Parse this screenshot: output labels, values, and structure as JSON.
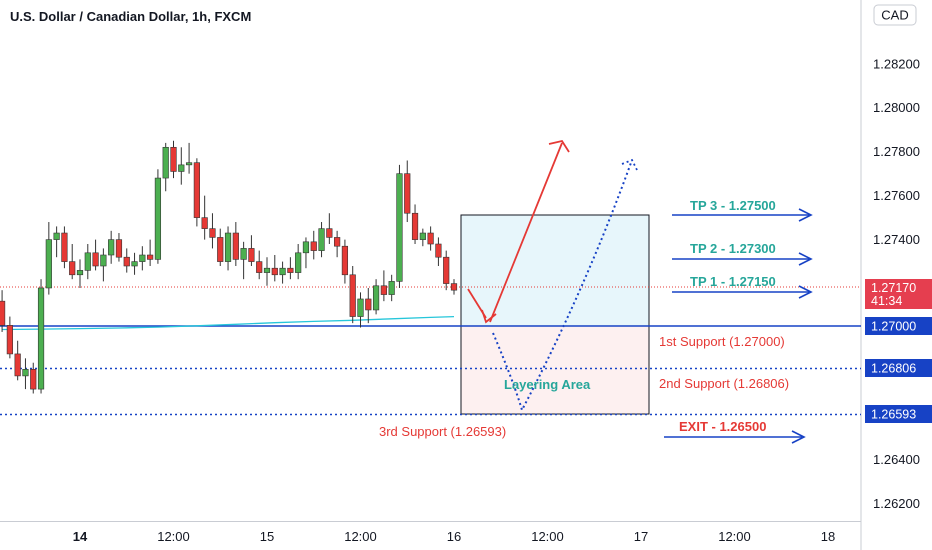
{
  "chart_data": {
    "type": "candlestick",
    "title": "U.S. Dollar / Canadian Dollar, 1h, FXCM",
    "currency_button": "CAD",
    "y_ticks": [
      "1.28200",
      "1.28000",
      "1.27800",
      "1.27600",
      "1.27400",
      "1.26400",
      "1.26200"
    ],
    "y_tick_values": [
      1.282,
      1.28,
      1.278,
      1.276,
      1.274,
      1.264,
      1.262
    ],
    "x_ticks": [
      "14",
      "12:00",
      "15",
      "12:00",
      "16",
      "12:00",
      "17",
      "12:00",
      "18"
    ],
    "x_tick_bold": [
      true,
      false,
      false,
      false,
      false,
      false,
      false,
      false,
      false
    ],
    "x_tick_hours": [
      0,
      12,
      24,
      36,
      48,
      60,
      72,
      84,
      96
    ],
    "ylim": [
      1.2612,
      1.2849
    ],
    "current_price": {
      "value": "1.27170",
      "timer": "41:34",
      "level": 1.2717
    },
    "price_labels": [
      {
        "text": "1.27000",
        "level": 1.27,
        "style": "solid"
      },
      {
        "text": "1.26806",
        "level": 1.26806,
        "style": "dotted"
      },
      {
        "text": "1.26593",
        "level": 1.26593,
        "style": "dotted"
      }
    ],
    "colors": {
      "up": "#4caf50",
      "down": "#e53935",
      "ma": "#26c6da",
      "level": "#1742c5",
      "teal_text": "#26a69a",
      "red_text": "#e53935",
      "box_top_fill": "#e7f6fb",
      "box_bottom_fill": "#fdf0f0"
    },
    "candles_ohlc": [
      [
        1.2712,
        1.2717,
        1.2698,
        1.2701
      ],
      [
        1.2701,
        1.2705,
        1.2686,
        1.2688
      ],
      [
        1.2688,
        1.2694,
        1.2676,
        1.2678
      ],
      [
        1.2678,
        1.2686,
        1.2672,
        1.2681
      ],
      [
        1.2681,
        1.2684,
        1.267,
        1.2672
      ],
      [
        1.2672,
        1.2722,
        1.267,
        1.2718
      ],
      [
        1.2718,
        1.2748,
        1.2715,
        1.274
      ],
      [
        1.274,
        1.2746,
        1.2732,
        1.2743
      ],
      [
        1.2743,
        1.2746,
        1.2727,
        1.273
      ],
      [
        1.273,
        1.2738,
        1.2722,
        1.2724
      ],
      [
        1.2724,
        1.2731,
        1.2718,
        1.2726
      ],
      [
        1.2726,
        1.2738,
        1.2722,
        1.2734
      ],
      [
        1.2734,
        1.274,
        1.2726,
        1.2728
      ],
      [
        1.2728,
        1.2736,
        1.2721,
        1.2733
      ],
      [
        1.2733,
        1.2744,
        1.2729,
        1.274
      ],
      [
        1.274,
        1.2743,
        1.273,
        1.2732
      ],
      [
        1.2732,
        1.2736,
        1.2725,
        1.2728
      ],
      [
        1.2728,
        1.2734,
        1.2724,
        1.273
      ],
      [
        1.273,
        1.2737,
        1.2726,
        1.2733
      ],
      [
        1.2733,
        1.274,
        1.2728,
        1.2731
      ],
      [
        1.2731,
        1.2772,
        1.2729,
        1.2768
      ],
      [
        1.2768,
        1.2784,
        1.2762,
        1.2782
      ],
      [
        1.2782,
        1.2785,
        1.2768,
        1.2771
      ],
      [
        1.2771,
        1.2782,
        1.2765,
        1.2774
      ],
      [
        1.2774,
        1.2784,
        1.277,
        1.2775
      ],
      [
        1.2775,
        1.2777,
        1.2746,
        1.275
      ],
      [
        1.275,
        1.276,
        1.274,
        1.2745
      ],
      [
        1.2745,
        1.2752,
        1.2736,
        1.2741
      ],
      [
        1.2741,
        1.2745,
        1.2728,
        1.273
      ],
      [
        1.273,
        1.2746,
        1.2726,
        1.2743
      ],
      [
        1.2743,
        1.2748,
        1.2728,
        1.2731
      ],
      [
        1.2731,
        1.2739,
        1.2722,
        1.2736
      ],
      [
        1.2736,
        1.2742,
        1.2728,
        1.273
      ],
      [
        1.273,
        1.2735,
        1.2722,
        1.2725
      ],
      [
        1.2725,
        1.2732,
        1.2719,
        1.2727
      ],
      [
        1.2727,
        1.2733,
        1.2721,
        1.2724
      ],
      [
        1.2724,
        1.273,
        1.272,
        1.2727
      ],
      [
        1.2727,
        1.2732,
        1.2722,
        1.2725
      ],
      [
        1.2725,
        1.2738,
        1.2722,
        1.2734
      ],
      [
        1.2734,
        1.2741,
        1.2727,
        1.2739
      ],
      [
        1.2739,
        1.2744,
        1.2731,
        1.2735
      ],
      [
        1.2735,
        1.2748,
        1.2732,
        1.2745
      ],
      [
        1.2745,
        1.2752,
        1.2738,
        1.2741
      ],
      [
        1.2741,
        1.2744,
        1.2732,
        1.2737
      ],
      [
        1.2737,
        1.274,
        1.272,
        1.2724
      ],
      [
        1.2724,
        1.2728,
        1.2702,
        1.2705
      ],
      [
        1.2705,
        1.2716,
        1.27,
        1.2713
      ],
      [
        1.2713,
        1.2718,
        1.2702,
        1.2708
      ],
      [
        1.2708,
        1.2722,
        1.2706,
        1.2719
      ],
      [
        1.2719,
        1.2726,
        1.2712,
        1.2715
      ],
      [
        1.2715,
        1.2724,
        1.2712,
        1.2721
      ],
      [
        1.2721,
        1.2774,
        1.2718,
        1.277
      ],
      [
        1.277,
        1.2776,
        1.2748,
        1.2752
      ],
      [
        1.2752,
        1.2756,
        1.2738,
        1.274
      ],
      [
        1.274,
        1.2745,
        1.2737,
        1.2743
      ],
      [
        1.2743,
        1.2746,
        1.2735,
        1.2738
      ],
      [
        1.2738,
        1.2741,
        1.2728,
        1.2732
      ],
      [
        1.2732,
        1.2735,
        1.2717,
        1.272
      ],
      [
        1.272,
        1.2722,
        1.2715,
        1.2717
      ]
    ],
    "ma_points": [
      [
        0,
        1.26991
      ],
      [
        5,
        1.26993
      ],
      [
        10,
        1.26995
      ],
      [
        15,
        1.26998
      ],
      [
        20,
        1.27002
      ],
      [
        25,
        1.27008
      ],
      [
        30,
        1.27015
      ],
      [
        35,
        1.27022
      ],
      [
        40,
        1.27028
      ],
      [
        45,
        1.27033
      ],
      [
        50,
        1.2704
      ],
      [
        55,
        1.27046
      ],
      [
        58,
        1.2705
      ]
    ],
    "annotations": {
      "tp3": "TP 3 - 1.27500",
      "tp2": "TP 2 - 1.27300",
      "tp1": "TP 1 - 1.27150",
      "support1": "1st Support (1.27000)",
      "support2": "2nd Support (1.26806)",
      "support3": "3rd Support (1.26593)",
      "exit": "EXIT - 1.26500",
      "layering": "Layering Area"
    }
  }
}
